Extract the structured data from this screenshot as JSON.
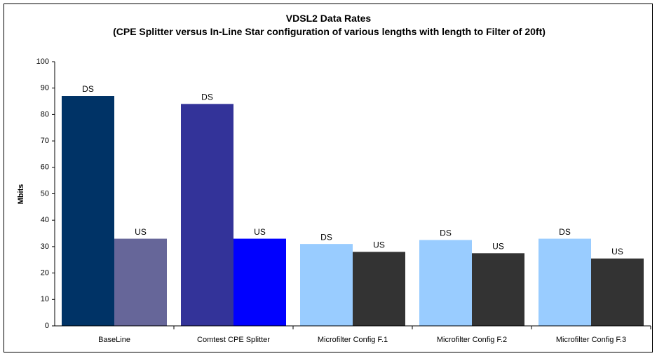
{
  "chart_data": {
    "type": "bar",
    "title": "VDSL2 Data Rates",
    "subtitle": "(CPE Splitter versus In-Line Star configuration of various lengths with length to Filter of 20ft)",
    "y_label": "Mbits",
    "categories": [
      "BaseLine",
      "Comtest CPE Splitter",
      "Microfilter Config F.1",
      "Microfilter Config F.2",
      "Microfilter Config F.3"
    ],
    "series": [
      {
        "name": "DS",
        "values": [
          87,
          84,
          31,
          32.5,
          33
        ],
        "colors": [
          "#003366",
          "#333399",
          "#99ccff",
          "#99ccff",
          "#99ccff"
        ]
      },
      {
        "name": "US",
        "values": [
          33,
          33,
          28,
          27.5,
          25.5
        ],
        "colors": [
          "#666699",
          "#0000ff",
          "#333333",
          "#333333",
          "#333333"
        ]
      }
    ],
    "ylim": [
      0,
      100
    ],
    "yticks": [
      0,
      10,
      20,
      30,
      40,
      50,
      60,
      70,
      80,
      90,
      100
    ],
    "grid": false
  }
}
